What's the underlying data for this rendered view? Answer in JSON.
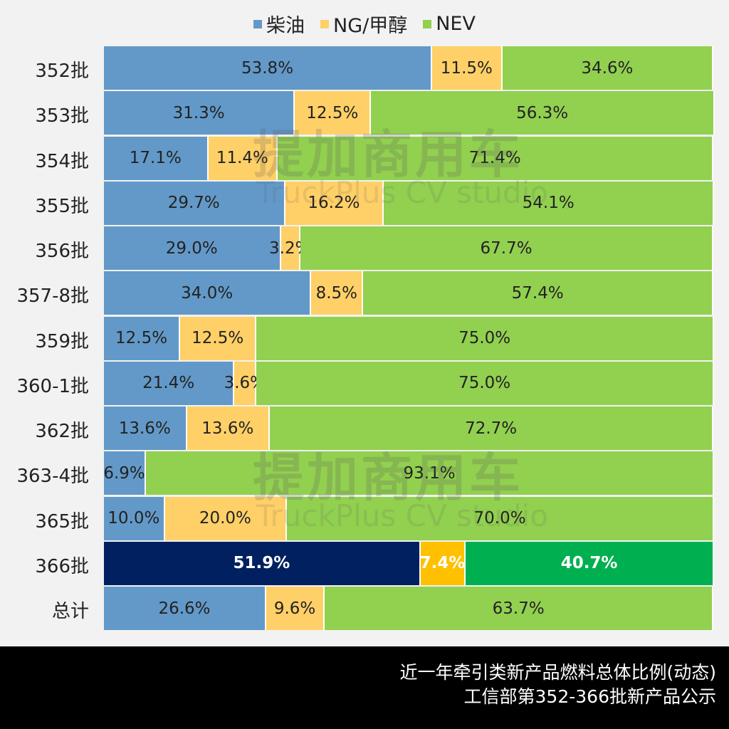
{
  "chart_data": {
    "type": "bar",
    "orientation": "horizontal",
    "stacked": "percent",
    "categories": [
      "352批",
      "353批",
      "354批",
      "355批",
      "356批",
      "357-8批",
      "359批",
      "360-1批",
      "362批",
      "363-4批",
      "365批",
      "366批",
      "总计"
    ],
    "series": [
      {
        "name": "柴油",
        "color": "#6399c8",
        "values": [
          53.8,
          31.3,
          17.1,
          29.7,
          29.0,
          34.0,
          12.5,
          21.4,
          13.6,
          6.9,
          10.0,
          51.9,
          26.6
        ]
      },
      {
        "name": "NG/甲醇",
        "color": "#ffd067",
        "values": [
          11.5,
          12.5,
          11.4,
          16.2,
          3.2,
          8.5,
          12.5,
          3.6,
          13.6,
          0,
          20.0,
          7.4,
          9.6
        ]
      },
      {
        "name": "NEV",
        "color": "#92d050",
        "values": [
          34.6,
          56.3,
          71.4,
          54.1,
          67.7,
          57.4,
          75.0,
          75.0,
          72.7,
          93.1,
          70.0,
          40.7,
          63.7
        ]
      }
    ],
    "highlight": {
      "category": "366批",
      "colors": [
        "#002060",
        "#ffc000",
        "#00b050"
      ]
    },
    "legend": "top",
    "xlim": [
      0,
      100
    ],
    "grid": false
  },
  "watermark": {
    "cn": "提加商用车",
    "en": "TruckPlus CV studio"
  },
  "footer": {
    "line1": "近一年牵引类新产品燃料总体比例(动态)",
    "line2": "工信部第352-366批新产品公示"
  }
}
